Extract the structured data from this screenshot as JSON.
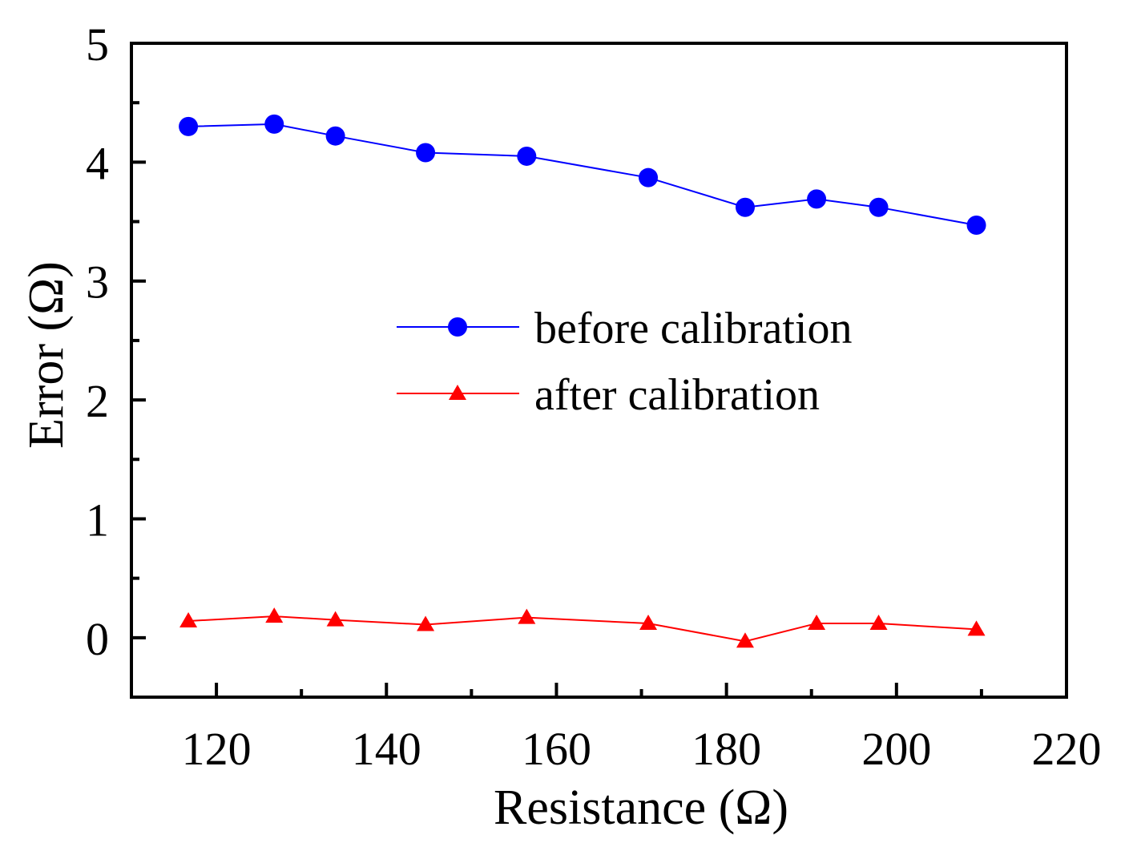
{
  "chart_data": {
    "type": "line",
    "xlabel": "Resistance (Ω)",
    "ylabel": "Error (Ω)",
    "xlim": [
      110,
      220
    ],
    "ylim": [
      -0.5,
      5
    ],
    "x_ticks": [
      120,
      140,
      160,
      180,
      200,
      220
    ],
    "y_ticks": [
      0,
      1,
      2,
      3,
      4,
      5
    ],
    "x_tick_labels": [
      "120",
      "140",
      "160",
      "180",
      "200",
      "220"
    ],
    "y_tick_labels": [
      "0",
      "1",
      "2",
      "3",
      "4",
      "5"
    ],
    "legend_position": "center-right",
    "grid": false,
    "series": [
      {
        "name": "before calibration",
        "color": "#0000ff",
        "marker": "circle",
        "x": [
          116.7,
          126.8,
          134.0,
          144.6,
          156.5,
          170.8,
          182.2,
          190.6,
          197.9,
          209.4
        ],
        "y": [
          4.3,
          4.32,
          4.22,
          4.08,
          4.05,
          3.87,
          3.62,
          3.69,
          3.62,
          3.47
        ]
      },
      {
        "name": "after calibration",
        "color": "#ff0000",
        "marker": "triangle",
        "x": [
          116.7,
          126.8,
          134.0,
          144.6,
          156.5,
          170.8,
          182.2,
          190.6,
          197.9,
          209.4
        ],
        "y": [
          0.14,
          0.18,
          0.15,
          0.11,
          0.17,
          0.12,
          -0.03,
          0.12,
          0.12,
          0.07
        ]
      }
    ]
  }
}
